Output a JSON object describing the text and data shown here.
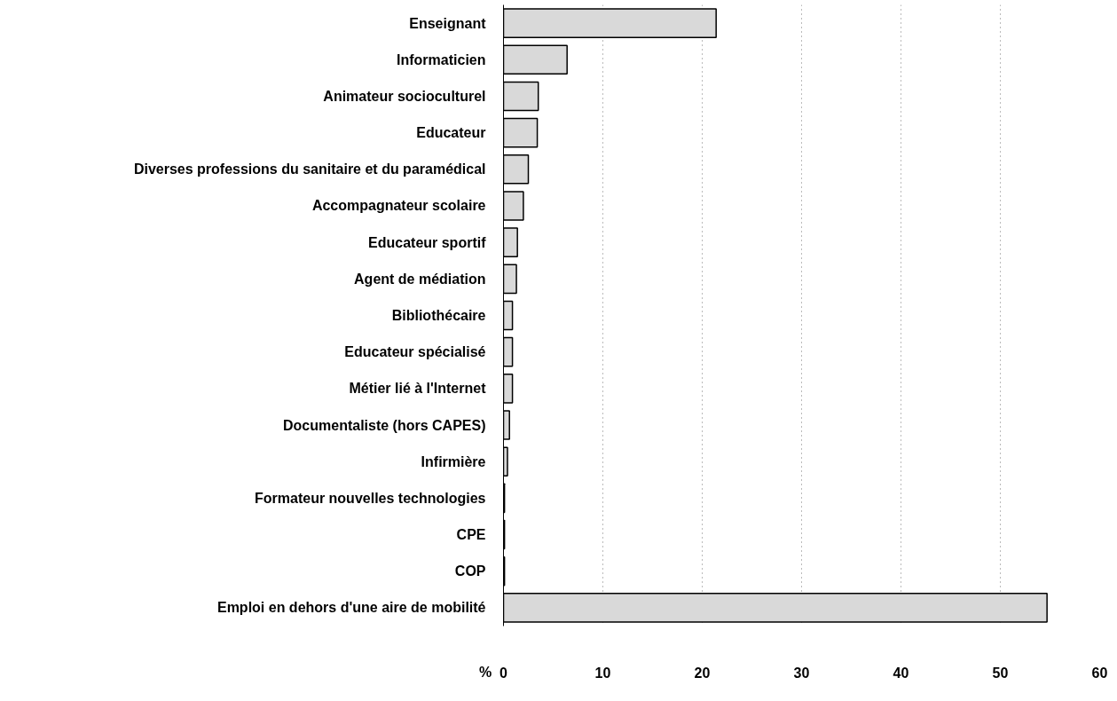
{
  "chart_data": {
    "type": "bar",
    "orientation": "horizontal",
    "xlabel": "%",
    "categories": [
      "Enseignant",
      "Informaticien",
      "Animateur socioculturel",
      "Educateur",
      "Diverses professions du sanitaire et du paramédical",
      "Accompagnateur scolaire",
      "Educateur sportif",
      "Agent de médiation",
      "Bibliothécaire",
      "Educateur spécialisé",
      "Métier lié à l'Internet",
      "Documentaliste (hors CAPES)",
      "Infirmière",
      "Formateur nouvelles technologies",
      "CPE",
      "COP",
      "Emploi en dehors d'une aire de mobilité"
    ],
    "values": [
      21.4,
      6.4,
      3.5,
      3.4,
      2.5,
      2.0,
      1.4,
      1.3,
      0.9,
      0.9,
      0.9,
      0.6,
      0.4,
      0.1,
      0.1,
      0.1,
      54.7
    ],
    "color": "#d9d9d9",
    "xlim": [
      0,
      60
    ],
    "xticks": [
      0,
      10,
      20,
      30,
      40,
      50,
      60
    ],
    "grid": "x"
  }
}
